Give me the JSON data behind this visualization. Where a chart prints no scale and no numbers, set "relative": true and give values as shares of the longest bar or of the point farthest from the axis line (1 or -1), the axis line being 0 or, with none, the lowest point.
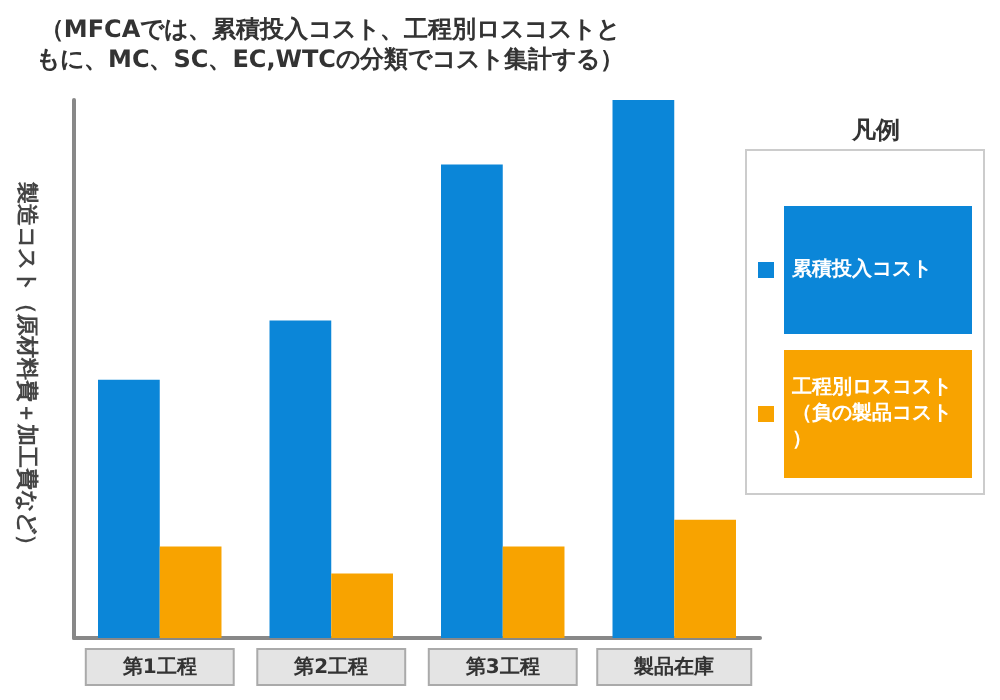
{
  "chart_data": {
    "type": "bar",
    "relative": true,
    "title": "（MFCAでは、累積投入コスト、工程別ロスコストともに、MC、SC、EC,WTCの分類でコスト集計する）",
    "ylabel": "製造コスト（原材料費＋加工費など）",
    "legend_title": "凡例",
    "categories": [
      "第1工程",
      "第2工程",
      "第3工程",
      "製品在庫"
    ],
    "series": [
      {
        "name": "累積投入コスト",
        "color": "#0b86d8",
        "values": [
          0.48,
          0.59,
          0.88,
          1
        ]
      },
      {
        "name": "工程別ロスコスト（負の製品コスト）",
        "color": "#f8a300",
        "values": [
          0.17,
          0.12,
          0.17,
          0.22
        ]
      }
    ],
    "legend": "right",
    "grid": false
  }
}
